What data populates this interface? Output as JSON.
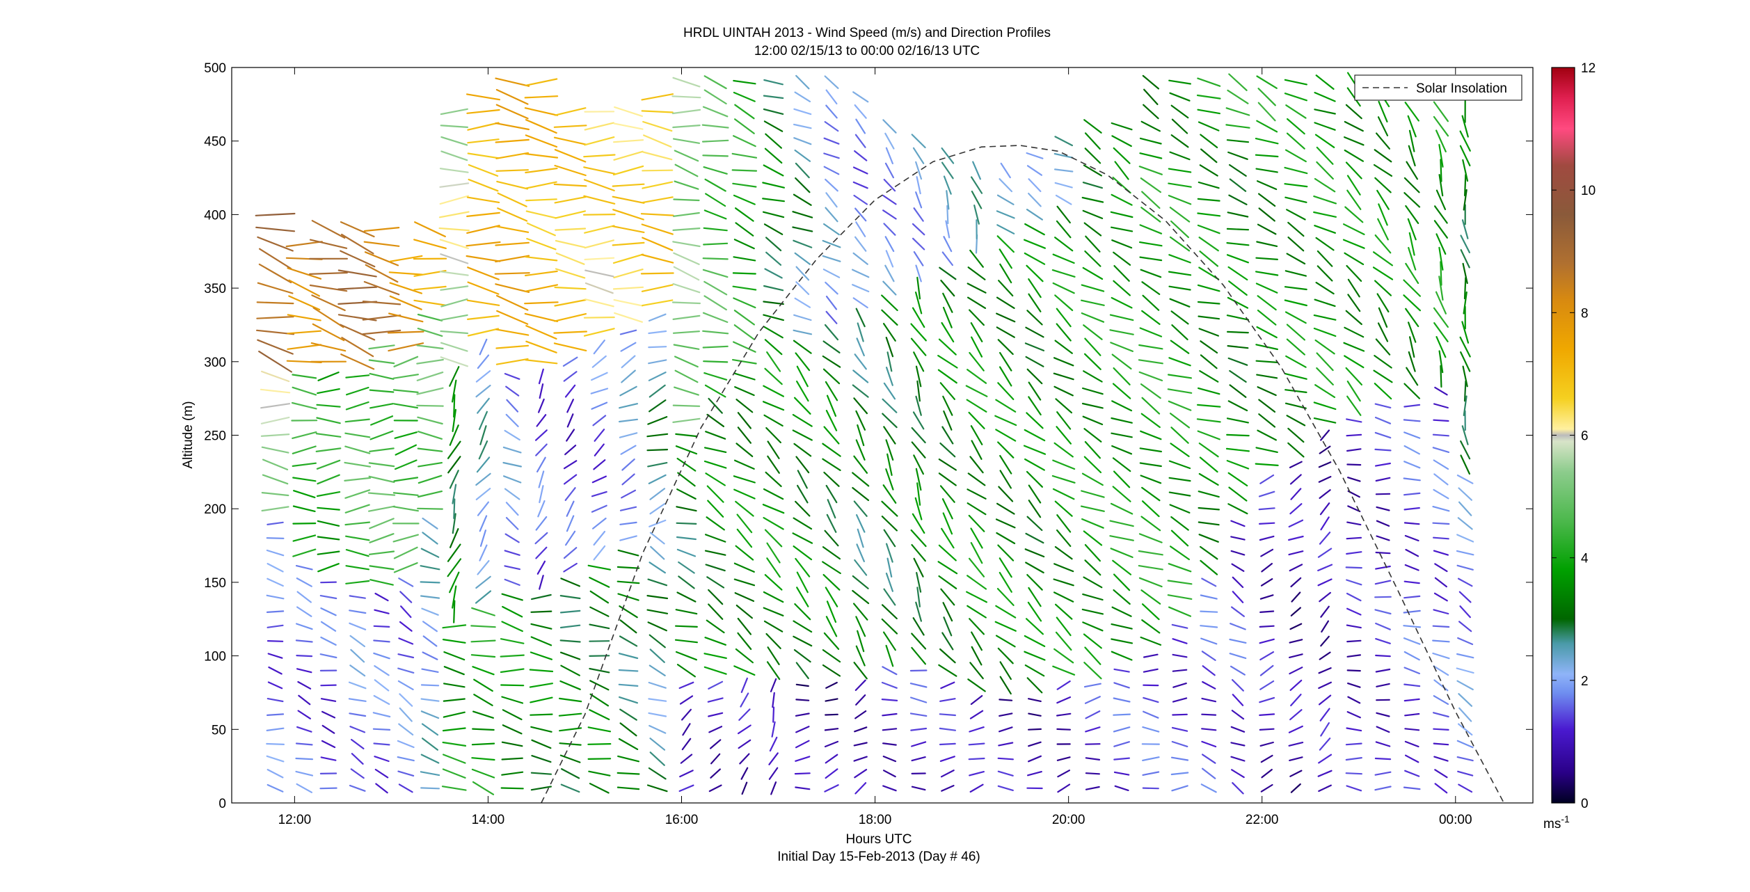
{
  "chart_data": {
    "type": "wind-barb-profile",
    "title_lines": [
      "HRDL UINTAH 2013 - Wind Speed (m/s) and Direction Profiles",
      "12:00 02/15/13 to 00:00 02/16/13  UTC"
    ],
    "xlabel": "Hours UTC",
    "xlabel_sub": "Initial Day 15-Feb-2013 (Day # 46)",
    "ylabel": "Altitude (m)",
    "xlim": [
      11.35,
      24.8
    ],
    "ylim": [
      0,
      500
    ],
    "x_ticks": [
      12,
      14,
      16,
      18,
      20,
      22,
      24
    ],
    "x_tick_labels": [
      "12:00",
      "14:00",
      "16:00",
      "18:00",
      "20:00",
      "22:00",
      "00:00"
    ],
    "y_ticks": [
      0,
      50,
      100,
      150,
      200,
      250,
      300,
      350,
      400,
      450,
      500
    ],
    "y_tick_labels": [
      "0",
      "50",
      "100",
      "150",
      "200",
      "250",
      "300",
      "350",
      "400",
      "450",
      "500"
    ],
    "legend": {
      "label": "Solar Insolation",
      "placement": "top-right",
      "style": "dashed"
    },
    "solar_insolation_curve": {
      "points": [
        [
          14.55,
          0
        ],
        [
          15.0,
          60
        ],
        [
          15.6,
          170
        ],
        [
          16.2,
          255
        ],
        [
          16.8,
          320
        ],
        [
          17.4,
          370
        ],
        [
          18.0,
          410
        ],
        [
          18.6,
          436
        ],
        [
          19.1,
          446
        ],
        [
          19.5,
          447
        ],
        [
          19.9,
          443
        ],
        [
          20.4,
          427
        ],
        [
          21.0,
          396
        ],
        [
          21.6,
          352
        ],
        [
          22.2,
          296
        ],
        [
          22.8,
          226
        ],
        [
          23.4,
          145
        ],
        [
          24.0,
          62
        ],
        [
          24.5,
          0
        ]
      ]
    },
    "colorbar": {
      "range": [
        0,
        12
      ],
      "ticks": [
        0,
        2,
        4,
        6,
        8,
        10,
        12
      ],
      "tick_labels": [
        "0",
        "2",
        "4",
        "6",
        "8",
        "10",
        "12"
      ],
      "unit": "ms",
      "unit_exp": "-1",
      "stops": [
        [
          0.0,
          "#000022"
        ],
        [
          0.5,
          "#2a0088"
        ],
        [
          1.2,
          "#4a1ad0"
        ],
        [
          1.8,
          "#6f8ff0"
        ],
        [
          2.1,
          "#8fb4f8"
        ],
        [
          2.6,
          "#4a9aa8"
        ],
        [
          3.0,
          "#006600"
        ],
        [
          3.8,
          "#00a000"
        ],
        [
          4.6,
          "#4cb84c"
        ],
        [
          5.4,
          "#8ccc8c"
        ],
        [
          5.9,
          "#d8e4c8"
        ],
        [
          6.0,
          "#bbbbbb"
        ],
        [
          6.1,
          "#fff0a0"
        ],
        [
          6.6,
          "#f5d020"
        ],
        [
          7.4,
          "#f0a800"
        ],
        [
          8.2,
          "#d88a10"
        ],
        [
          8.8,
          "#b07030"
        ],
        [
          9.6,
          "#8a5a3a"
        ],
        [
          10.4,
          "#a04a40"
        ],
        [
          11.0,
          "#ff4a80"
        ],
        [
          11.5,
          "#e02050"
        ],
        [
          12.0,
          "#a00010"
        ]
      ]
    },
    "profiles": [
      {
        "t": 11.8,
        "ranges": [
          [
            10,
            200,
            280,
            1.6
          ],
          [
            200,
            400,
            275,
            5.6
          ],
          [
            300,
            400,
            285,
            9.0
          ]
        ]
      },
      {
        "t": 12.1,
        "ranges": [
          [
            10,
            170,
            290,
            1.5
          ],
          [
            170,
            300,
            270,
            4.2
          ],
          [
            300,
            380,
            280,
            8.0
          ]
        ]
      },
      {
        "t": 12.35,
        "ranges": [
          [
            10,
            160,
            285,
            1.4
          ],
          [
            160,
            300,
            265,
            4.0
          ],
          [
            300,
            390,
            285,
            8.5
          ]
        ]
      },
      {
        "t": 12.65,
        "ranges": [
          [
            10,
            150,
            295,
            1.8
          ],
          [
            150,
            300,
            268,
            4.5
          ],
          [
            300,
            390,
            283,
            8.8
          ]
        ]
      },
      {
        "t": 12.9,
        "ranges": [
          [
            10,
            150,
            290,
            1.6
          ],
          [
            150,
            320,
            265,
            4.6
          ],
          [
            320,
            390,
            280,
            8.5
          ]
        ]
      },
      {
        "t": 13.15,
        "ranges": [
          [
            10,
            160,
            300,
            1.7
          ],
          [
            160,
            310,
            262,
            4.4
          ],
          [
            310,
            370,
            275,
            7.8
          ]
        ]
      },
      {
        "t": 13.4,
        "ranges": [
          [
            10,
            200,
            290,
            2.2
          ],
          [
            200,
            340,
            270,
            4.8
          ],
          [
            340,
            390,
            278,
            7.5
          ]
        ]
      },
      {
        "t": 13.65,
        "ranges": [
          [
            10,
            130,
            275,
            3.8
          ],
          [
            130,
            300,
            200,
            3.2
          ],
          [
            300,
            470,
            272,
            5.8
          ]
        ]
      },
      {
        "t": 13.95,
        "ranges": [
          [
            10,
            140,
            285,
            3.9
          ],
          [
            140,
            320,
            215,
            2.3
          ],
          [
            320,
            480,
            275,
            7.2
          ]
        ]
      },
      {
        "t": 14.25,
        "ranges": [
          [
            10,
            150,
            280,
            3.6
          ],
          [
            150,
            300,
            300,
            1.9
          ],
          [
            300,
            490,
            278,
            7.4
          ]
        ]
      },
      {
        "t": 14.55,
        "ranges": [
          [
            10,
            150,
            275,
            3.4
          ],
          [
            150,
            300,
            210,
            1.5
          ],
          [
            300,
            490,
            276,
            7.0
          ]
        ]
      },
      {
        "t": 14.85,
        "ranges": [
          [
            10,
            160,
            280,
            3.2
          ],
          [
            160,
            310,
            220,
            1.3
          ],
          [
            310,
            470,
            274,
            6.8
          ]
        ]
      },
      {
        "t": 15.15,
        "ranges": [
          [
            10,
            170,
            285,
            3.3
          ],
          [
            170,
            320,
            235,
            1.6
          ],
          [
            320,
            470,
            272,
            6.5
          ]
        ]
      },
      {
        "t": 15.45,
        "ranges": [
          [
            10,
            180,
            290,
            3.0
          ],
          [
            180,
            330,
            245,
            2.0
          ],
          [
            330,
            470,
            270,
            6.6
          ]
        ]
      },
      {
        "t": 15.75,
        "ranges": [
          [
            10,
            190,
            295,
            2.6
          ],
          [
            190,
            340,
            250,
            2.6
          ],
          [
            340,
            480,
            275,
            6.8
          ]
        ]
      },
      {
        "t": 16.05,
        "ranges": [
          [
            10,
            90,
            230,
            1.2
          ],
          [
            90,
            260,
            290,
            3.1
          ],
          [
            260,
            490,
            280,
            5.2
          ]
        ]
      },
      {
        "t": 16.35,
        "ranges": [
          [
            10,
            90,
            240,
            1.0
          ],
          [
            90,
            280,
            300,
            3.4
          ],
          [
            280,
            490,
            285,
            4.5
          ]
        ]
      },
      {
        "t": 16.65,
        "ranges": [
          [
            10,
            90,
            220,
            0.9
          ],
          [
            90,
            300,
            305,
            3.5
          ],
          [
            300,
            490,
            290,
            4.0
          ]
        ]
      },
      {
        "t": 16.95,
        "ranges": [
          [
            10,
            90,
            200,
            0.8
          ],
          [
            90,
            310,
            310,
            3.6
          ],
          [
            310,
            490,
            295,
            3.2
          ]
        ]
      },
      {
        "t": 17.25,
        "ranges": [
          [
            10,
            90,
            260,
            0.7
          ],
          [
            90,
            320,
            315,
            3.4
          ],
          [
            320,
            490,
            300,
            2.6
          ]
        ]
      },
      {
        "t": 17.55,
        "ranges": [
          [
            10,
            90,
            250,
            0.8
          ],
          [
            90,
            330,
            320,
            3.3
          ],
          [
            330,
            490,
            305,
            2.0
          ]
        ]
      },
      {
        "t": 17.85,
        "ranges": [
          [
            10,
            90,
            240,
            1.0
          ],
          [
            90,
            340,
            325,
            3.0
          ],
          [
            340,
            480,
            310,
            1.8
          ]
        ]
      },
      {
        "t": 18.15,
        "ranges": [
          [
            10,
            100,
            280,
            1.1
          ],
          [
            100,
            350,
            330,
            3.1
          ],
          [
            350,
            460,
            320,
            1.9
          ]
        ]
      },
      {
        "t": 18.45,
        "ranges": [
          [
            10,
            100,
            270,
            1.2
          ],
          [
            100,
            360,
            335,
            3.3
          ],
          [
            360,
            450,
            330,
            2.0
          ]
        ]
      },
      {
        "t": 18.75,
        "ranges": [
          [
            10,
            90,
            260,
            1.0
          ],
          [
            90,
            370,
            320,
            3.4
          ],
          [
            370,
            440,
            340,
            2.2
          ]
        ]
      },
      {
        "t": 19.05,
        "ranges": [
          [
            10,
            80,
            250,
            0.9
          ],
          [
            80,
            380,
            315,
            3.6
          ],
          [
            380,
            430,
            345,
            2.3
          ]
        ]
      },
      {
        "t": 19.35,
        "ranges": [
          [
            10,
            80,
            270,
            0.9
          ],
          [
            80,
            390,
            312,
            3.5
          ],
          [
            390,
            430,
            310,
            2.1
          ]
        ]
      },
      {
        "t": 19.65,
        "ranges": [
          [
            10,
            80,
            265,
            0.9
          ],
          [
            80,
            400,
            310,
            3.4
          ],
          [
            400,
            440,
            300,
            2.4
          ]
        ]
      },
      {
        "t": 19.95,
        "ranges": [
          [
            10,
            90,
            255,
            1.0
          ],
          [
            90,
            410,
            305,
            3.6
          ],
          [
            410,
            450,
            295,
            2.6
          ]
        ]
      },
      {
        "t": 20.25,
        "ranges": [
          [
            10,
            90,
            260,
            1.2
          ],
          [
            90,
            420,
            300,
            3.7
          ],
          [
            420,
            460,
            300,
            3.0
          ]
        ]
      },
      {
        "t": 20.55,
        "ranges": [
          [
            10,
            100,
            270,
            1.3
          ],
          [
            100,
            430,
            298,
            3.8
          ],
          [
            430,
            460,
            305,
            3.2
          ]
        ]
      },
      {
        "t": 20.85,
        "ranges": [
          [
            10,
            110,
            275,
            1.4
          ],
          [
            110,
            440,
            295,
            3.9
          ],
          [
            440,
            490,
            300,
            3.5
          ]
        ]
      },
      {
        "t": 21.15,
        "ranges": [
          [
            10,
            130,
            270,
            1.3
          ],
          [
            130,
            440,
            295,
            3.8
          ],
          [
            440,
            490,
            295,
            3.6
          ]
        ]
      },
      {
        "t": 21.45,
        "ranges": [
          [
            10,
            160,
            290,
            1.4
          ],
          [
            160,
            450,
            292,
            3.6
          ],
          [
            450,
            490,
            295,
            3.8
          ]
        ]
      },
      {
        "t": 21.75,
        "ranges": [
          [
            10,
            200,
            300,
            1.3
          ],
          [
            200,
            460,
            290,
            3.4
          ],
          [
            460,
            490,
            295,
            3.9
          ]
        ]
      },
      {
        "t": 22.05,
        "ranges": [
          [
            10,
            230,
            250,
            1.0
          ],
          [
            230,
            470,
            292,
            3.5
          ],
          [
            470,
            490,
            300,
            4.0
          ]
        ]
      },
      {
        "t": 22.35,
        "ranges": [
          [
            10,
            240,
            240,
            0.8
          ],
          [
            240,
            470,
            295,
            3.6
          ],
          [
            470,
            490,
            300,
            4.1
          ]
        ]
      },
      {
        "t": 22.65,
        "ranges": [
          [
            10,
            260,
            230,
            0.9
          ],
          [
            260,
            480,
            300,
            3.7
          ],
          [
            480,
            490,
            305,
            4.2
          ]
        ]
      },
      {
        "t": 22.95,
        "ranges": [
          [
            10,
            270,
            280,
            1.0
          ],
          [
            270,
            480,
            310,
            3.6
          ],
          [
            480,
            490,
            310,
            4.0
          ]
        ]
      },
      {
        "t": 23.25,
        "ranges": [
          [
            10,
            280,
            275,
            1.1
          ],
          [
            280,
            470,
            320,
            3.6
          ],
          [
            470,
            480,
            320,
            3.8
          ]
        ]
      },
      {
        "t": 23.55,
        "ranges": [
          [
            10,
            280,
            280,
            1.4
          ],
          [
            280,
            470,
            330,
            3.6
          ]
        ]
      },
      {
        "t": 23.85,
        "ranges": [
          [
            10,
            290,
            290,
            1.5
          ],
          [
            290,
            470,
            340,
            3.8
          ]
        ]
      },
      {
        "t": 24.1,
        "ranges": [
          [
            10,
            230,
            300,
            1.8
          ],
          [
            230,
            470,
            350,
            3.2
          ]
        ]
      }
    ]
  }
}
